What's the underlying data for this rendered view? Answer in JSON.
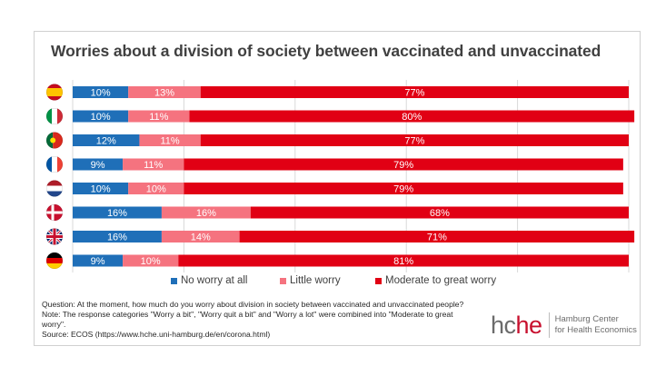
{
  "colors": {
    "no_worry": "#1f6fb8",
    "little_worry": "#f5737f",
    "moderate_great": "#e10014",
    "grid": "#d9d9d9",
    "frame": "#d0d0d0",
    "logo_gray": "#6b6b6b",
    "logo_red": "#c8102e"
  },
  "chart_data": {
    "type": "bar",
    "orientation": "horizontal",
    "stacked": true,
    "normalized": true,
    "title": "Worries about a division of society between vaccinated and unvaccinated",
    "xlabel": "",
    "ylabel": "",
    "xlim": [
      0,
      100
    ],
    "grid": true,
    "gridlines_at": [
      0,
      20,
      40,
      60,
      80,
      100
    ],
    "legend_position": "bottom",
    "categories": [
      "Spain",
      "Italy",
      "Portugal",
      "France",
      "Netherlands",
      "Denmark",
      "United Kingdom",
      "Germany"
    ],
    "category_icons": [
      "flag-spain",
      "flag-italy",
      "flag-portugal",
      "flag-france",
      "flag-netherlands",
      "flag-denmark",
      "flag-uk",
      "flag-germany"
    ],
    "series": [
      {
        "name": "No worry at all",
        "key": "no_worry",
        "values": [
          10,
          10,
          12,
          9,
          10,
          16,
          16,
          9
        ],
        "labels": [
          "10%",
          "10%",
          "12%",
          "9%",
          "10%",
          "16%",
          "16%",
          "9%"
        ]
      },
      {
        "name": "Little worry",
        "key": "little_worry",
        "values": [
          13,
          11,
          11,
          11,
          10,
          16,
          14,
          10
        ],
        "labels": [
          "13%",
          "11%",
          "11%",
          "11%",
          "10%",
          "16%",
          "14%",
          "10%"
        ]
      },
      {
        "name": "Moderate to great worry",
        "key": "moderate_great",
        "values": [
          77,
          80,
          77,
          79,
          79,
          68,
          71,
          81
        ],
        "labels": [
          "77%",
          "80%",
          "77%",
          "79%",
          "79%",
          "68%",
          "71%",
          "81%"
        ]
      }
    ]
  },
  "notes": {
    "question": "Question: At the moment, how much do you worry about division in society between vaccinated and unvaccinated people?",
    "note": "Note: The response categories \"Worry a bit\",  \"Worry quit a bit\" and \"Worry  a lot\" were combined into \"Moderate to great worry\".",
    "source": "Source: ECOS (https://www.hche.uni-hamburg.de/en/corona.html)"
  },
  "logo": {
    "mark_gray": "hc",
    "mark_red": "he",
    "line1": "Hamburg Center",
    "line2": "for Health Economics"
  }
}
